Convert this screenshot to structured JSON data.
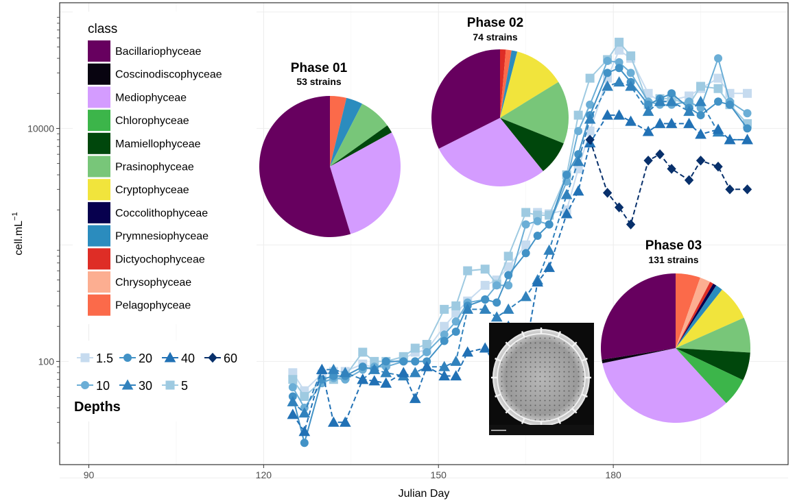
{
  "chart_data": {
    "type": "line",
    "xlabel": "Julian Day",
    "ylabel": "cell.mL",
    "ylabel_superscript": "−1",
    "y_scale": "log",
    "ylim": [
      13,
      120000
    ],
    "xlim": [
      85,
      210
    ],
    "x_ticks": [
      {
        "value": 90,
        "label": "90"
      },
      {
        "value": 120,
        "label": "120"
      },
      {
        "value": 150,
        "label": "150"
      },
      {
        "value": 180,
        "label": "180"
      }
    ],
    "y_ticks": [
      {
        "value": 100,
        "label": "100"
      },
      {
        "value": 10000,
        "label": "10000"
      }
    ],
    "grid": true,
    "legend": {
      "title": "class",
      "placement": "top-left",
      "items": [
        {
          "label": "Bacillariophyceae",
          "color": "#67005f"
        },
        {
          "label": "Coscinodiscophyceae",
          "color": "#080410"
        },
        {
          "label": "Mediophyceae",
          "color": "#d49cff"
        },
        {
          "label": "Chlorophyceae",
          "color": "#3cb54a"
        },
        {
          "label": "Mamiellophyceae",
          "color": "#00470c"
        },
        {
          "label": "Prasinophyceae",
          "color": "#78c679"
        },
        {
          "label": "Cryptophyceae",
          "color": "#f1e43c"
        },
        {
          "label": "Coccolithophyceae",
          "color": "#07004e"
        },
        {
          "label": "Prymnesiophyceae",
          "color": "#2b8cbe"
        },
        {
          "label": "Dictyochophyceae",
          "color": "#de2d26"
        },
        {
          "label": "Chrysophyceae",
          "color": "#fcae91"
        },
        {
          "label": "Pelagophyceae",
          "color": "#fb6a4a"
        }
      ]
    },
    "depth_legend": {
      "title": "Depths",
      "row1": [
        {
          "label": "1.5",
          "shape": "square",
          "color": "#c6dbef"
        },
        {
          "label": "20",
          "shape": "circle",
          "color": "#4292c6"
        },
        {
          "label": "40",
          "shape": "triangle",
          "color": "#2171b5"
        },
        {
          "label": "60",
          "shape": "diamond",
          "color": "#08306b"
        }
      ],
      "row2": [
        {
          "label": "10",
          "shape": "circle",
          "color": "#6baed6"
        },
        {
          "label": "30",
          "shape": "triangle",
          "color": "#3182bd"
        },
        {
          "label": "5",
          "shape": "square",
          "color": "#9ecae1"
        }
      ]
    },
    "x": [
      125,
      127,
      130,
      132,
      134,
      137,
      139,
      141,
      144,
      146,
      148,
      151,
      153,
      155,
      158,
      160,
      162,
      165,
      167,
      169,
      172,
      174,
      176,
      179,
      181,
      183,
      186,
      188,
      190,
      193,
      195,
      198,
      200,
      203
    ],
    "series": [
      {
        "name": "1.5",
        "shape": "square",
        "color": "#c6dbef",
        "dash": false,
        "values": [
          80,
          56,
          78,
          82,
          82,
          95,
          88,
          95,
          105,
          120,
          125,
          200,
          260,
          330,
          450,
          500,
          650,
          1000,
          1900,
          1850,
          2000,
          4500,
          9500,
          27000,
          47000,
          40000,
          20000,
          17000,
          17500,
          19000,
          22000,
          27000,
          20000,
          20000
        ]
      },
      {
        "name": "5",
        "shape": "square",
        "color": "#9ecae1",
        "dash": false,
        "values": [
          70,
          50,
          68,
          70,
          75,
          120,
          100,
          100,
          110,
          130,
          140,
          280,
          300,
          600,
          620,
          460,
          800,
          1900,
          1800,
          1800,
          4000,
          13000,
          27000,
          39000,
          55000,
          42000,
          16000,
          18000,
          18000,
          16000,
          23000,
          22000,
          16000,
          11000
        ]
      },
      {
        "name": "10",
        "shape": "circle",
        "color": "#6baed6",
        "dash": false,
        "values": [
          60,
          40,
          65,
          72,
          70,
          85,
          90,
          90,
          100,
          100,
          120,
          170,
          220,
          320,
          340,
          450,
          450,
          1500,
          1600,
          1500,
          3500,
          9500,
          16000,
          38000,
          37000,
          30000,
          17000,
          16000,
          16000,
          17000,
          15000,
          40000,
          17000,
          13500
        ]
      },
      {
        "name": "20",
        "shape": "circle",
        "color": "#4292c6",
        "dash": false,
        "values": [
          50,
          20,
          70,
          75,
          75,
          90,
          85,
          100,
          100,
          100,
          100,
          150,
          180,
          300,
          340,
          320,
          550,
          850,
          1200,
          1500,
          4000,
          6000,
          13000,
          30000,
          33000,
          25000,
          16000,
          18000,
          20000,
          15000,
          13000,
          17000,
          16000,
          10000
        ]
      },
      {
        "name": "30",
        "shape": "triangle",
        "color": "#3182bd",
        "dash": true,
        "values": [
          45,
          36,
          85,
          85,
          80,
          70,
          85,
          80,
          75,
          80,
          90,
          90,
          100,
          280,
          280,
          240,
          280,
          360,
          500,
          900,
          2700,
          5200,
          12000,
          23000,
          25000,
          23000,
          14000,
          17000,
          17000,
          14000,
          17000,
          9300,
          8000,
          8000
        ]
      },
      {
        "name": "40",
        "shape": "triangle",
        "color": "#2171b5",
        "dash": true,
        "values": [
          35,
          25,
          85,
          30,
          30,
          70,
          68,
          65,
          80,
          48,
          90,
          75,
          75,
          120,
          130,
          90,
          200,
          130,
          480,
          640,
          1850,
          2900,
          7500,
          13000,
          13000,
          11500,
          9400,
          11000,
          11000,
          11000,
          8900,
          9800,
          8000,
          8000
        ]
      },
      {
        "name": "60",
        "shape": "diamond",
        "color": "#08306b",
        "dash": true,
        "values": [
          null,
          null,
          null,
          null,
          null,
          null,
          null,
          null,
          null,
          null,
          null,
          null,
          null,
          null,
          null,
          null,
          null,
          null,
          null,
          null,
          null,
          null,
          8000,
          2800,
          2100,
          1500,
          5300,
          6000,
          4500,
          3600,
          5300,
          4700,
          3000,
          3000
        ]
      }
    ],
    "pies": [
      {
        "title": "Phase 01",
        "subtitle": "53 strains",
        "slices": [
          {
            "label": "Pelagophyceae",
            "color": "#fb6a4a",
            "value": 2
          },
          {
            "label": "Prymnesiophyceae",
            "color": "#2b8cbe",
            "value": 2
          },
          {
            "label": "Prasinophyceae",
            "color": "#78c679",
            "value": 4
          },
          {
            "label": "Mamiellophyceae",
            "color": "#00470c",
            "value": 1
          },
          {
            "label": "Mediophyceae",
            "color": "#d49cff",
            "value": 15
          },
          {
            "label": "Bacillariophyceae",
            "color": "#67005f",
            "value": 29
          }
        ]
      },
      {
        "title": "Phase 02",
        "subtitle": "74 strains",
        "slices": [
          {
            "label": "Dictyochophyceae",
            "color": "#de2d26",
            "value": 1
          },
          {
            "label": "Pelagophyceae",
            "color": "#fb6a4a",
            "value": 1
          },
          {
            "label": "Prymnesiophyceae",
            "color": "#2b8cbe",
            "value": 1
          },
          {
            "label": "Cryptophyceae",
            "color": "#f1e43c",
            "value": 9
          },
          {
            "label": "Prasinophyceae",
            "color": "#78c679",
            "value": 11
          },
          {
            "label": "Mamiellophyceae",
            "color": "#00470c",
            "value": 6
          },
          {
            "label": "Mediophyceae",
            "color": "#d49cff",
            "value": 21
          },
          {
            "label": "Bacillariophyceae",
            "color": "#67005f",
            "value": 24
          }
        ]
      },
      {
        "title": "Phase 03",
        "subtitle": "131 strains",
        "slices": [
          {
            "label": "Pelagophyceae",
            "color": "#fb6a4a",
            "value": 7
          },
          {
            "label": "Chrysophyceae",
            "color": "#fcae91",
            "value": 3
          },
          {
            "label": "Dictyochophyceae",
            "color": "#de2d26",
            "value": 1
          },
          {
            "label": "Coccolithophyceae",
            "color": "#07004e",
            "value": 1
          },
          {
            "label": "Prymnesiophyceae",
            "color": "#2b8cbe",
            "value": 2
          },
          {
            "label": "Cryptophyceae",
            "color": "#f1e43c",
            "value": 10
          },
          {
            "label": "Prasinophyceae",
            "color": "#78c679",
            "value": 10
          },
          {
            "label": "Mamiellophyceae",
            "color": "#00470c",
            "value": 8
          },
          {
            "label": "Chlorophyceae",
            "color": "#3cb54a",
            "value": 8
          },
          {
            "label": "Mediophyceae",
            "color": "#d49cff",
            "value": 44
          },
          {
            "label": "Coscinodiscophyceae",
            "color": "#080410",
            "value": 1
          },
          {
            "label": "Bacillariophyceae",
            "color": "#67005f",
            "value": 36
          }
        ]
      }
    ]
  }
}
